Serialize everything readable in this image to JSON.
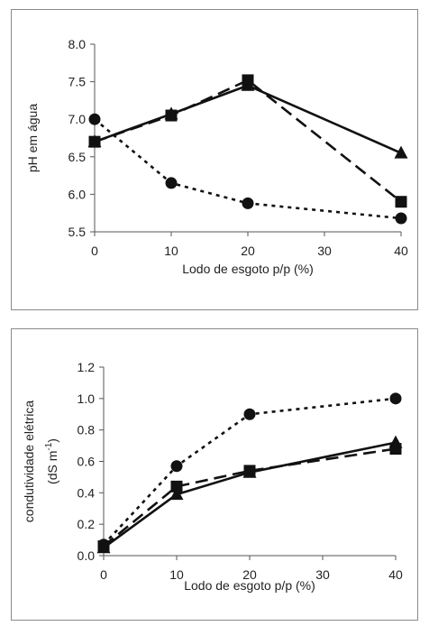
{
  "chart_data": [
    {
      "type": "line",
      "xlabel": "Lodo de esgoto p/p (%)",
      "ylabel": "pH em água",
      "ylabel_sup": "",
      "xlim": [
        0,
        40
      ],
      "ylim": [
        5.5,
        8.0
      ],
      "xticks": [
        "0",
        "10",
        "20",
        "30",
        "40"
      ],
      "yticks": [
        "5.5",
        "6.0",
        "6.5",
        "7.0",
        "7.5",
        "8.0"
      ],
      "series": [
        {
          "marker": "triangle",
          "line": "solid",
          "x": [
            0,
            10,
            20,
            40
          ],
          "y": [
            6.7,
            7.07,
            7.45,
            6.55
          ]
        },
        {
          "marker": "square",
          "line": "longdash",
          "x": [
            0,
            10,
            20,
            40
          ],
          "y": [
            6.7,
            7.05,
            7.52,
            5.9
          ]
        },
        {
          "marker": "circle",
          "line": "dotted",
          "x": [
            0,
            10,
            20,
            40
          ],
          "y": [
            7.0,
            6.15,
            5.88,
            5.68
          ]
        }
      ]
    },
    {
      "type": "line",
      "xlabel": "Lodo de esgoto p/p (%)",
      "ylabel": "condutividade elétrica",
      "ylabel2": "(dS  m",
      "ylabel_sup": "-1",
      "ylabel2_end": ")",
      "xlim": [
        0,
        40
      ],
      "ylim": [
        0.0,
        1.2
      ],
      "xticks": [
        "0",
        "10",
        "20",
        "30",
        "40"
      ],
      "yticks": [
        "0.0",
        "0.2",
        "0.4",
        "0.6",
        "0.8",
        "1.0",
        "1.2"
      ],
      "series": [
        {
          "marker": "triangle",
          "line": "solid",
          "x": [
            0,
            10,
            20,
            40
          ],
          "y": [
            0.05,
            0.39,
            0.53,
            0.72
          ]
        },
        {
          "marker": "square",
          "line": "longdash",
          "x": [
            0,
            10,
            20,
            40
          ],
          "y": [
            0.06,
            0.44,
            0.54,
            0.68
          ]
        },
        {
          "marker": "circle",
          "line": "dotted",
          "x": [
            0,
            10,
            20,
            40
          ],
          "y": [
            0.07,
            0.57,
            0.9,
            1.0
          ]
        }
      ]
    }
  ]
}
